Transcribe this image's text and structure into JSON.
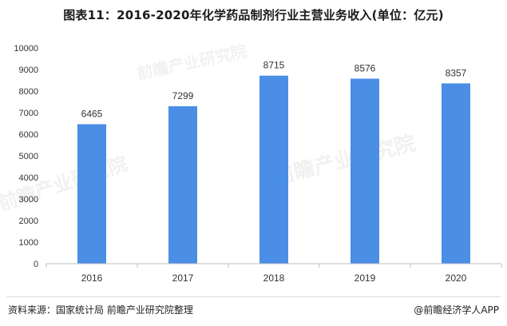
{
  "title": "图表11：2016-2020年化学药品制剂行业主营业务收入(单位：亿元)",
  "source": "资料来源：国家统计局 前瞻产业研究院整理",
  "brand": "@前瞻经济学人APP",
  "watermark_text": "前瞻产业研究院",
  "colors": {
    "bar": "#4a8ee6",
    "axis": "#bfbfbf",
    "text": "#333333"
  },
  "chart_data": {
    "type": "bar",
    "title": "图表11：2016-2020年化学药品制剂行业主营业务收入(单位：亿元)",
    "categories": [
      "2016",
      "2017",
      "2018",
      "2019",
      "2020"
    ],
    "values": [
      6465,
      7299,
      8715,
      8576,
      8357
    ],
    "yticks": [
      0,
      1000,
      2000,
      3000,
      4000,
      5000,
      6000,
      7000,
      8000,
      9000,
      10000
    ],
    "ylim": [
      0,
      10000
    ],
    "xlabel": "",
    "ylabel": "",
    "grid": false,
    "data_labels": true
  }
}
